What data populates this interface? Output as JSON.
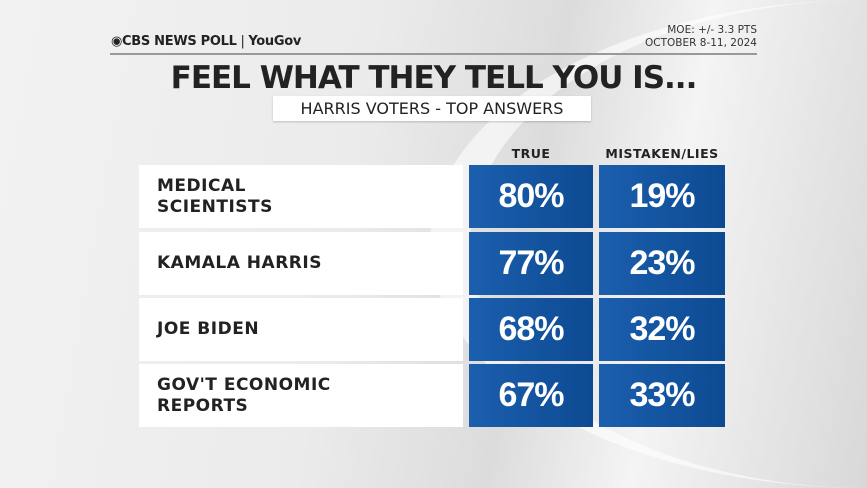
{
  "header": {
    "logo_text": "CBS NEWS POLL",
    "logo_partner": "YouGov",
    "moe": "MOE: +/- 3.3 PTS",
    "dates": "OCTOBER 8-11, 2024"
  },
  "title": "FEEL WHAT THEY TELL YOU IS...",
  "subtitle": "HARRIS VOTERS - TOP ANSWERS",
  "chart_data": {
    "type": "table",
    "columns": [
      "TRUE",
      "MISTAKEN/LIES"
    ],
    "rows": [
      {
        "label": "MEDICAL SCIENTISTS",
        "values": [
          "80%",
          "19%"
        ]
      },
      {
        "label": "KAMALA HARRIS",
        "values": [
          "77%",
          "23%"
        ]
      },
      {
        "label": "JOE BIDEN",
        "values": [
          "68%",
          "32%"
        ]
      },
      {
        "label": "GOV'T ECONOMIC REPORTS",
        "values": [
          "67%",
          "33%"
        ]
      }
    ],
    "cell_color": "#1457a3"
  }
}
